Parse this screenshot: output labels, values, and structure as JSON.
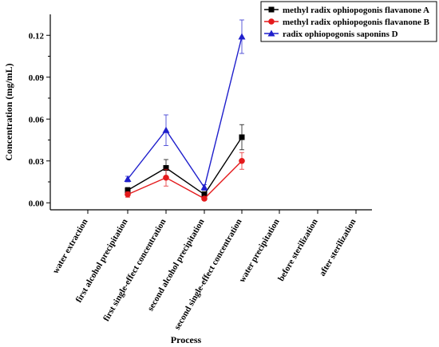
{
  "chart_data": {
    "type": "line",
    "title": "",
    "xlabel": "Process",
    "ylabel": "Concentration (mg/mL)",
    "categories": [
      "water extraction",
      "first alcohol precipitation",
      "first single-effect concentration",
      "second alcohol precipitation",
      "second single-effect concentration",
      "water precipitation",
      "before sterilization",
      "after sterilization"
    ],
    "ylim": [
      -0.005,
      0.135
    ],
    "yticks": [
      "0.00",
      "0.03",
      "0.06",
      "0.09",
      "0.12"
    ],
    "grid": false,
    "legend_position": "top-right",
    "series": [
      {
        "name": "methyl radix ophiopogonis flavanone A",
        "color": "#000000",
        "marker": "square",
        "values": [
          null,
          0.009,
          0.025,
          0.006,
          0.047,
          null,
          null,
          null
        ],
        "errors": [
          null,
          0.002,
          0.006,
          0.002,
          0.009,
          null,
          null,
          null
        ]
      },
      {
        "name": "methyl radix ophiopogonis flavanone B",
        "color": "#e41a1c",
        "marker": "circle",
        "values": [
          null,
          0.006,
          0.018,
          0.003,
          0.03,
          null,
          null,
          null
        ],
        "errors": [
          null,
          0.002,
          0.006,
          0.001,
          0.006,
          null,
          null,
          null
        ]
      },
      {
        "name": "radix ophiopogonis saponins D",
        "color": "#1f1fcc",
        "marker": "triangle",
        "values": [
          null,
          0.017,
          0.052,
          0.011,
          0.119,
          null,
          null,
          null
        ],
        "errors": [
          null,
          0.002,
          0.011,
          0.002,
          0.012,
          null,
          null,
          null
        ]
      }
    ]
  }
}
